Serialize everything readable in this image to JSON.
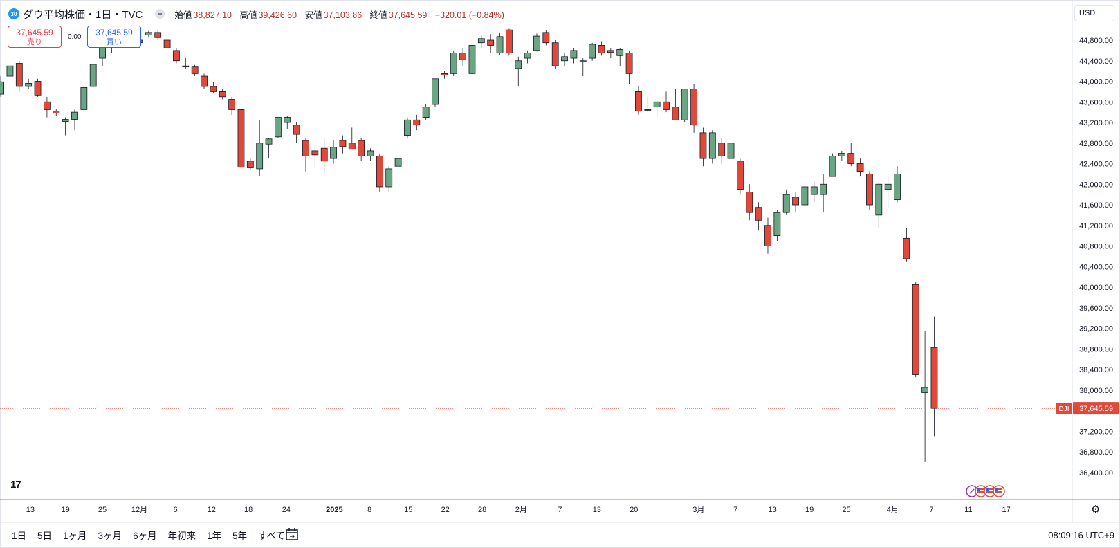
{
  "header": {
    "badge": "30",
    "title": "ダウ平均株価・1日・TVC",
    "open_label": "始値",
    "open_value": "38,827.10",
    "high_label": "高値",
    "high_value": "39,426.60",
    "low_label": "安値",
    "low_value": "37,103.86",
    "close_label": "終値",
    "close_value": "37,645.59",
    "change": "−320.01 (−0.84%)"
  },
  "trade": {
    "sell_price": "37,645.59",
    "sell_label": "売り",
    "spread": "0.00",
    "buy_price": "37,645.59",
    "buy_label": "買い"
  },
  "currency": "USD",
  "price_scale_labels": [
    "44,800.00",
    "44,400.00",
    "44,000.00",
    "43,600.00",
    "43,200.00",
    "42,800.00",
    "42,400.00",
    "42,000.00",
    "41,600.00",
    "41,200.00",
    "40,800.00",
    "40,400.00",
    "40,000.00",
    "39,600.00",
    "39,200.00",
    "38,800.00",
    "38,400.00",
    "38,000.00",
    "37,600.00",
    "37,200.00",
    "36,800.00",
    "36,400.00"
  ],
  "last_price_tag": {
    "symbol": "DJI",
    "value": "37,645.59"
  },
  "time_axis_labels": [
    "13",
    "19",
    "25",
    "12月",
    "6",
    "12",
    "18",
    "24",
    "2025",
    "8",
    "15",
    "22",
    "28",
    "2月",
    "7",
    "13",
    "20",
    "3月",
    "7",
    "13",
    "19",
    "25",
    "4月",
    "7",
    "11",
    "17"
  ],
  "bottom_bar": {
    "ranges": [
      "1日",
      "5日",
      "1ヶ月",
      "3ヶ月",
      "6ヶ月",
      "年初来",
      "1年",
      "5年",
      "すべて"
    ],
    "clock": "08:09:16 UTC+9"
  },
  "logo_text": "17",
  "colors": {
    "up": "#6aa584",
    "down": "#e0493a",
    "grid": "#f0f3fa",
    "last_line": "#e0493a"
  },
  "icons": [
    "calendar-range-icon",
    "gear-icon",
    "tradingview-logo-icon",
    "us-flag-event-icon",
    "dividend-event-icon"
  ],
  "chart_data": {
    "type": "candlestick",
    "title": "ダウ平均株価",
    "interval": "1日",
    "y_axis": {
      "min": 36100,
      "max": 45100,
      "scale": "linear"
    },
    "last_price": 37645.59,
    "candles": [
      {
        "date": "2024-11-08",
        "o": 43750,
        "h": 44100,
        "l": 43700,
        "c": 43990
      },
      {
        "date": "2024-11-11",
        "o": 44100,
        "h": 44500,
        "l": 44000,
        "c": 44300
      },
      {
        "date": "2024-11-12",
        "o": 44350,
        "h": 44400,
        "l": 43800,
        "c": 43900
      },
      {
        "date": "2024-11-13",
        "o": 43900,
        "h": 44050,
        "l": 43850,
        "c": 43960
      },
      {
        "date": "2024-11-14",
        "o": 44000,
        "h": 44050,
        "l": 43700,
        "c": 43720
      },
      {
        "date": "2024-11-15",
        "o": 43600,
        "h": 43700,
        "l": 43300,
        "c": 43450
      },
      {
        "date": "2024-11-18",
        "o": 43420,
        "h": 43460,
        "l": 43330,
        "c": 43380
      },
      {
        "date": "2024-11-19",
        "o": 43220,
        "h": 43300,
        "l": 42950,
        "c": 43260
      },
      {
        "date": "2024-11-20",
        "o": 43260,
        "h": 43450,
        "l": 43050,
        "c": 43400
      },
      {
        "date": "2024-11-21",
        "o": 43450,
        "h": 43900,
        "l": 43400,
        "c": 43880
      },
      {
        "date": "2024-11-22",
        "o": 43900,
        "h": 44350,
        "l": 43880,
        "c": 44330
      },
      {
        "date": "2024-11-25",
        "o": 44450,
        "h": 44950,
        "l": 44300,
        "c": 44750
      },
      {
        "date": "2024-11-26",
        "o": 44700,
        "h": 44900,
        "l": 44550,
        "c": 44850
      },
      {
        "date": "2024-11-27",
        "o": 44900,
        "h": 44950,
        "l": 44700,
        "c": 44800
      },
      {
        "date": "2024-11-29",
        "o": 44800,
        "h": 44950,
        "l": 44750,
        "c": 44900
      },
      {
        "date": "2024-12-02",
        "o": 44800,
        "h": 44900,
        "l": 44650,
        "c": 44750
      },
      {
        "date": "2024-12-03",
        "o": 44900,
        "h": 44980,
        "l": 44850,
        "c": 44950
      },
      {
        "date": "2024-12-04",
        "o": 44950,
        "h": 45000,
        "l": 44800,
        "c": 44850
      },
      {
        "date": "2024-12-05",
        "o": 44800,
        "h": 44900,
        "l": 44600,
        "c": 44650
      },
      {
        "date": "2024-12-06",
        "o": 44600,
        "h": 44650,
        "l": 44350,
        "c": 44400
      },
      {
        "date": "2024-12-09",
        "o": 44300,
        "h": 44450,
        "l": 44250,
        "c": 44280
      },
      {
        "date": "2024-12-10",
        "o": 44280,
        "h": 44320,
        "l": 44100,
        "c": 44150
      },
      {
        "date": "2024-12-11",
        "o": 44100,
        "h": 44150,
        "l": 43850,
        "c": 43900
      },
      {
        "date": "2024-12-12",
        "o": 43900,
        "h": 43980,
        "l": 43780,
        "c": 43800
      },
      {
        "date": "2024-12-13",
        "o": 43800,
        "h": 43850,
        "l": 43650,
        "c": 43700
      },
      {
        "date": "2024-12-16",
        "o": 43650,
        "h": 43700,
        "l": 43350,
        "c": 43450
      },
      {
        "date": "2024-12-17",
        "o": 43450,
        "h": 43650,
        "l": 42300,
        "c": 42330
      },
      {
        "date": "2024-12-18",
        "o": 42450,
        "h": 42500,
        "l": 42280,
        "c": 42320
      },
      {
        "date": "2024-12-19",
        "o": 42300,
        "h": 43250,
        "l": 42150,
        "c": 42800
      },
      {
        "date": "2024-12-20",
        "o": 42780,
        "h": 42900,
        "l": 42500,
        "c": 42880
      },
      {
        "date": "2024-12-23",
        "o": 42920,
        "h": 43300,
        "l": 42900,
        "c": 43300
      },
      {
        "date": "2024-12-24",
        "o": 43200,
        "h": 43320,
        "l": 43080,
        "c": 43300
      },
      {
        "date": "2024-12-26",
        "o": 43150,
        "h": 43200,
        "l": 42800,
        "c": 42970
      },
      {
        "date": "2024-12-27",
        "o": 42850,
        "h": 42900,
        "l": 42250,
        "c": 42550
      },
      {
        "date": "2024-12-30",
        "o": 42650,
        "h": 42750,
        "l": 42350,
        "c": 42570
      },
      {
        "date": "2024-12-31",
        "o": 42700,
        "h": 42900,
        "l": 42200,
        "c": 42450
      },
      {
        "date": "2025-01-02",
        "o": 42500,
        "h": 42850,
        "l": 42400,
        "c": 42720
      },
      {
        "date": "2025-01-03",
        "o": 42850,
        "h": 42950,
        "l": 42600,
        "c": 42730
      },
      {
        "date": "2025-01-06",
        "o": 42800,
        "h": 43100,
        "l": 42700,
        "c": 42680
      },
      {
        "date": "2025-01-07",
        "o": 42850,
        "h": 42900,
        "l": 42450,
        "c": 42550
      },
      {
        "date": "2025-01-08",
        "o": 42550,
        "h": 42700,
        "l": 42450,
        "c": 42650
      },
      {
        "date": "2025-01-10",
        "o": 42550,
        "h": 42600,
        "l": 41850,
        "c": 41950
      },
      {
        "date": "2025-01-13",
        "o": 41950,
        "h": 42350,
        "l": 41850,
        "c": 42300
      },
      {
        "date": "2025-01-14",
        "o": 42350,
        "h": 42550,
        "l": 42100,
        "c": 42500
      },
      {
        "date": "2025-01-15",
        "o": 42950,
        "h": 43300,
        "l": 42900,
        "c": 43250
      },
      {
        "date": "2025-01-16",
        "o": 43250,
        "h": 43350,
        "l": 43050,
        "c": 43150
      },
      {
        "date": "2025-01-17",
        "o": 43300,
        "h": 43550,
        "l": 43250,
        "c": 43500
      },
      {
        "date": "2025-01-21",
        "o": 43550,
        "h": 44050,
        "l": 43500,
        "c": 44050
      },
      {
        "date": "2025-01-22",
        "o": 44150,
        "h": 44200,
        "l": 44050,
        "c": 44120
      },
      {
        "date": "2025-01-23",
        "o": 44150,
        "h": 44600,
        "l": 44100,
        "c": 44550
      },
      {
        "date": "2025-01-24",
        "o": 44550,
        "h": 44650,
        "l": 44300,
        "c": 44420
      },
      {
        "date": "2025-01-27",
        "o": 44150,
        "h": 44750,
        "l": 44050,
        "c": 44700
      },
      {
        "date": "2025-01-28",
        "o": 44750,
        "h": 44900,
        "l": 44650,
        "c": 44830
      },
      {
        "date": "2025-01-29",
        "o": 44800,
        "h": 44920,
        "l": 44550,
        "c": 44700
      },
      {
        "date": "2025-01-30",
        "o": 44550,
        "h": 44950,
        "l": 44520,
        "c": 44870
      },
      {
        "date": "2025-01-31",
        "o": 45000,
        "h": 45020,
        "l": 44500,
        "c": 44550
      },
      {
        "date": "2025-02-03",
        "o": 44250,
        "h": 44480,
        "l": 43900,
        "c": 44400
      },
      {
        "date": "2025-02-04",
        "o": 44450,
        "h": 44600,
        "l": 44350,
        "c": 44550
      },
      {
        "date": "2025-02-05",
        "o": 44600,
        "h": 44930,
        "l": 44580,
        "c": 44880
      },
      {
        "date": "2025-02-06",
        "o": 44950,
        "h": 45000,
        "l": 44700,
        "c": 44750
      },
      {
        "date": "2025-02-07",
        "o": 44750,
        "h": 44800,
        "l": 44250,
        "c": 44300
      },
      {
        "date": "2025-02-10",
        "o": 44400,
        "h": 44550,
        "l": 44300,
        "c": 44480
      },
      {
        "date": "2025-02-11",
        "o": 44450,
        "h": 44650,
        "l": 44350,
        "c": 44600
      },
      {
        "date": "2025-02-12",
        "o": 44400,
        "h": 44450,
        "l": 44100,
        "c": 44380
      },
      {
        "date": "2025-02-13",
        "o": 44450,
        "h": 44750,
        "l": 44400,
        "c": 44720
      },
      {
        "date": "2025-02-14",
        "o": 44700,
        "h": 44780,
        "l": 44500,
        "c": 44550
      },
      {
        "date": "2025-02-18",
        "o": 44600,
        "h": 44650,
        "l": 44450,
        "c": 44560
      },
      {
        "date": "2025-02-19",
        "o": 44500,
        "h": 44650,
        "l": 44300,
        "c": 44620
      },
      {
        "date": "2025-02-20",
        "o": 44550,
        "h": 44600,
        "l": 43950,
        "c": 44150
      },
      {
        "date": "2025-02-21",
        "o": 43800,
        "h": 43900,
        "l": 43350,
        "c": 43420
      },
      {
        "date": "2025-02-24",
        "o": 43450,
        "h": 43700,
        "l": 43400,
        "c": 43450
      },
      {
        "date": "2025-02-25",
        "o": 43500,
        "h": 43700,
        "l": 43300,
        "c": 43600
      },
      {
        "date": "2025-02-26",
        "o": 43600,
        "h": 43800,
        "l": 43400,
        "c": 43450
      },
      {
        "date": "2025-02-27",
        "o": 43500,
        "h": 43850,
        "l": 43250,
        "c": 43250
      },
      {
        "date": "2025-02-28",
        "o": 43250,
        "h": 43850,
        "l": 43200,
        "c": 43850
      },
      {
        "date": "2025-03-03",
        "o": 43850,
        "h": 43950,
        "l": 43000,
        "c": 43150
      },
      {
        "date": "2025-03-04",
        "o": 43000,
        "h": 43100,
        "l": 42350,
        "c": 42500
      },
      {
        "date": "2025-03-05",
        "o": 42500,
        "h": 43050,
        "l": 42400,
        "c": 43000
      },
      {
        "date": "2025-03-06",
        "o": 42800,
        "h": 42900,
        "l": 42400,
        "c": 42550
      },
      {
        "date": "2025-03-07",
        "o": 42500,
        "h": 42900,
        "l": 42200,
        "c": 42800
      },
      {
        "date": "2025-03-10",
        "o": 42450,
        "h": 42500,
        "l": 41800,
        "c": 41900
      },
      {
        "date": "2025-03-11",
        "o": 41850,
        "h": 42000,
        "l": 41300,
        "c": 41450
      },
      {
        "date": "2025-03-12",
        "o": 41550,
        "h": 41650,
        "l": 41100,
        "c": 41300
      },
      {
        "date": "2025-03-13",
        "o": 41200,
        "h": 41350,
        "l": 40650,
        "c": 40800
      },
      {
        "date": "2025-03-14",
        "o": 41000,
        "h": 41500,
        "l": 40900,
        "c": 41450
      },
      {
        "date": "2025-03-17",
        "o": 41450,
        "h": 41900,
        "l": 41400,
        "c": 41800
      },
      {
        "date": "2025-03-18",
        "o": 41750,
        "h": 41850,
        "l": 41450,
        "c": 41600
      },
      {
        "date": "2025-03-19",
        "o": 41600,
        "h": 42150,
        "l": 41550,
        "c": 41950
      },
      {
        "date": "2025-03-20",
        "o": 41800,
        "h": 42050,
        "l": 41650,
        "c": 41950
      },
      {
        "date": "2025-03-21",
        "o": 41800,
        "h": 42200,
        "l": 41450,
        "c": 42000
      },
      {
        "date": "2025-03-24",
        "o": 42150,
        "h": 42600,
        "l": 42150,
        "c": 42550
      },
      {
        "date": "2025-03-25",
        "o": 42550,
        "h": 42650,
        "l": 42450,
        "c": 42600
      },
      {
        "date": "2025-03-26",
        "o": 42600,
        "h": 42800,
        "l": 42350,
        "c": 42400
      },
      {
        "date": "2025-03-27",
        "o": 42400,
        "h": 42500,
        "l": 42150,
        "c": 42250
      },
      {
        "date": "2025-03-28",
        "o": 42200,
        "h": 42250,
        "l": 41500,
        "c": 41600
      },
      {
        "date": "2025-03-31",
        "o": 41400,
        "h": 42050,
        "l": 41150,
        "c": 42000
      },
      {
        "date": "2025-04-01",
        "o": 41900,
        "h": 42150,
        "l": 41550,
        "c": 42000
      },
      {
        "date": "2025-04-02",
        "o": 41700,
        "h": 42350,
        "l": 41650,
        "c": 42200
      },
      {
        "date": "2025-04-03",
        "o": 40950,
        "h": 41150,
        "l": 40500,
        "c": 40550
      },
      {
        "date": "2025-04-04",
        "o": 40050,
        "h": 40100,
        "l": 38250,
        "c": 38300
      },
      {
        "date": "2025-04-07",
        "o": 37950,
        "h": 39150,
        "l": 36600,
        "c": 38050
      },
      {
        "date": "2025-04-08",
        "o": 38827.1,
        "h": 39426.6,
        "l": 37103.86,
        "c": 37645.59
      }
    ]
  }
}
